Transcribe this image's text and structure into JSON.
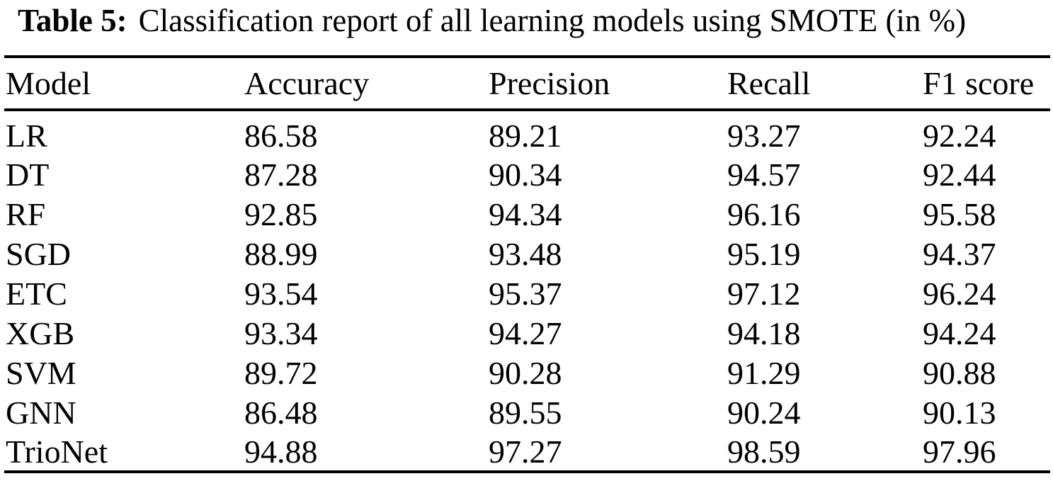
{
  "caption": {
    "label": "Table 5:",
    "text": "Classification report of all learning models using SMOTE (in %)"
  },
  "table": {
    "columns": [
      "Model",
      "Accuracy",
      "Precision",
      "Recall",
      "F1 score"
    ],
    "column_keys": [
      "model",
      "accuracy",
      "precision",
      "recall",
      "f1_score"
    ],
    "rows": [
      {
        "model": "LR",
        "accuracy": "86.58",
        "precision": "89.21",
        "recall": "93.27",
        "f1_score": "92.24"
      },
      {
        "model": "DT",
        "accuracy": "87.28",
        "precision": "90.34",
        "recall": "94.57",
        "f1_score": "92.44"
      },
      {
        "model": "RF",
        "accuracy": "92.85",
        "precision": "94.34",
        "recall": "96.16",
        "f1_score": "95.58"
      },
      {
        "model": "SGD",
        "accuracy": "88.99",
        "precision": "93.48",
        "recall": "95.19",
        "f1_score": "94.37"
      },
      {
        "model": "ETC",
        "accuracy": "93.54",
        "precision": "95.37",
        "recall": "97.12",
        "f1_score": "96.24"
      },
      {
        "model": "XGB",
        "accuracy": "93.34",
        "precision": "94.27",
        "recall": "94.18",
        "f1_score": "94.24"
      },
      {
        "model": "SVM",
        "accuracy": "89.72",
        "precision": "90.28",
        "recall": "91.29",
        "f1_score": "90.88"
      },
      {
        "model": "GNN",
        "accuracy": "86.48",
        "precision": "89.55",
        "recall": "90.24",
        "f1_score": "90.13"
      },
      {
        "model": "TrioNet",
        "accuracy": "94.88",
        "precision": "97.27",
        "recall": "98.59",
        "f1_score": "97.96"
      }
    ]
  },
  "colors": {
    "text": "#000000",
    "background": "#ffffff",
    "rule": "#000000"
  }
}
